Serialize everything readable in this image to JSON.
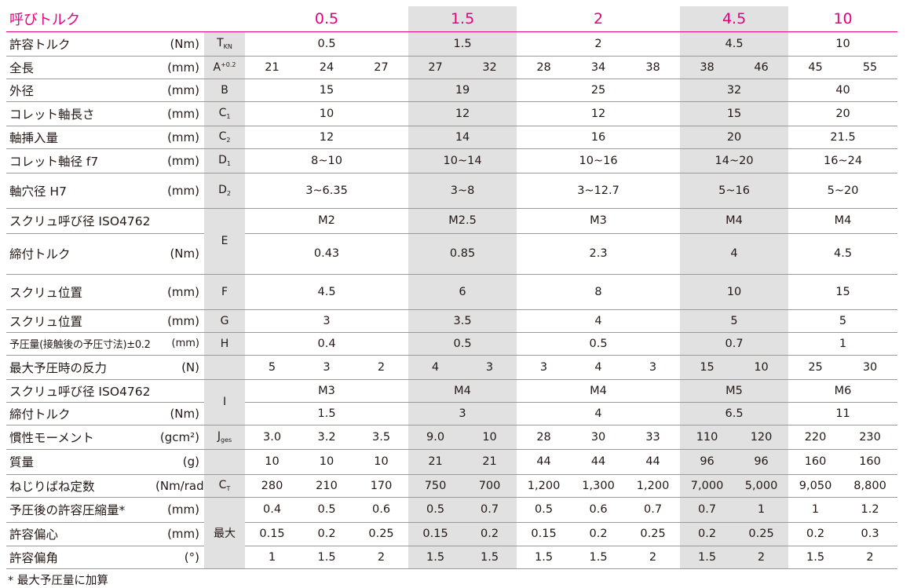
{
  "header": {
    "label": "呼びトルク",
    "sizes": [
      "0.5",
      "1.5",
      "2",
      "4.5",
      "10"
    ]
  },
  "rows": [
    {
      "label": "許容トルク",
      "unit": "(Nm)",
      "symbol": "T",
      "symbol_sub": "KN",
      "values": [
        "0.5",
        "1.5",
        "2",
        "4.5",
        "10"
      ]
    },
    {
      "label": "全長",
      "unit": "(mm)",
      "symbol": "A",
      "symbol_sup": "+0.2",
      "values": [
        "21",
        "24",
        "27",
        "27",
        "32",
        "28",
        "34",
        "38",
        "38",
        "46",
        "45",
        "55"
      ]
    },
    {
      "label": "外径",
      "unit": "(mm)",
      "symbol": "B",
      "values": [
        "15",
        "19",
        "25",
        "32",
        "40"
      ]
    },
    {
      "label": "コレット軸長さ",
      "unit": "(mm)",
      "symbol": "C",
      "symbol_sub": "1",
      "values": [
        "10",
        "12",
        "12",
        "15",
        "20"
      ]
    },
    {
      "label": "軸挿入量",
      "unit": "(mm)",
      "symbol": "C",
      "symbol_sub": "2",
      "values": [
        "12",
        "14",
        "16",
        "20",
        "21.5"
      ]
    },
    {
      "label": "コレット軸径 f7",
      "unit": "(mm)",
      "symbol": "D",
      "symbol_sub": "1",
      "values": [
        "8~10",
        "10~14",
        "10~16",
        "14~20",
        "16~24"
      ]
    },
    {
      "label": "軸穴径 H7",
      "unit": "(mm)",
      "symbol": "D",
      "symbol_sub": "2",
      "values": [
        "3~6.35",
        "3~8",
        "3~12.7",
        "5~16",
        "5~20"
      ]
    },
    {
      "label": "スクリュ呼び径 ISO4762",
      "unit": "",
      "symbol": "E",
      "values": [
        "M2",
        "M2.5",
        "M3",
        "M4",
        "M4"
      ]
    },
    {
      "label": "締付トルク",
      "unit": "(Nm)",
      "values": [
        "0.43",
        "0.85",
        "2.3",
        "4",
        "4.5"
      ]
    },
    {
      "label": "スクリュ位置",
      "unit": "(mm)",
      "symbol": "F",
      "values": [
        "4.5",
        "6",
        "8",
        "10",
        "15"
      ]
    },
    {
      "label": "スクリュ位置",
      "unit": "(mm)",
      "symbol": "G",
      "values": [
        "3",
        "3.5",
        "4",
        "5",
        "5"
      ]
    },
    {
      "label": "予圧量(接触後の予圧寸法)±0.2",
      "unit": "(mm)",
      "symbol": "H",
      "values": [
        "0.4",
        "0.5",
        "0.5",
        "0.7",
        "1"
      ]
    },
    {
      "label": "最大予圧時の反力",
      "unit": "(N)",
      "symbol": "",
      "values": [
        "5",
        "3",
        "2",
        "4",
        "3",
        "3",
        "4",
        "3",
        "15",
        "10",
        "25",
        "30"
      ]
    },
    {
      "label": "スクリュ呼び径 ISO4762",
      "unit": "",
      "symbol": "I",
      "values": [
        "M3",
        "M4",
        "M4",
        "M5",
        "M6"
      ]
    },
    {
      "label": "締付トルク",
      "unit": "(Nm)",
      "values": [
        "1.5",
        "3",
        "4",
        "6.5",
        "11"
      ]
    },
    {
      "label": "慣性モーメント",
      "unit": "(gcm²)",
      "symbol": "J",
      "symbol_sub": "ges",
      "values": [
        "3.0",
        "3.2",
        "3.5",
        "9.0",
        "10",
        "28",
        "30",
        "33",
        "110",
        "120",
        "220",
        "230"
      ]
    },
    {
      "label": "質量",
      "unit": "(g)",
      "symbol": "",
      "values": [
        "10",
        "10",
        "10",
        "21",
        "21",
        "44",
        "44",
        "44",
        "96",
        "96",
        "160",
        "160"
      ]
    },
    {
      "label": "ねじりばね定数",
      "unit": "(Nm/rad)",
      "symbol": "C",
      "symbol_sub": "T",
      "values": [
        "280",
        "210",
        "170",
        "750",
        "700",
        "1,200",
        "1,300",
        "1,200",
        "7,000",
        "5,000",
        "9,050",
        "8,800"
      ]
    },
    {
      "label": "予圧後の許容圧縮量*",
      "unit": "(mm)",
      "symbol": "最大",
      "values": [
        "0.4",
        "0.5",
        "0.6",
        "0.5",
        "0.7",
        "0.5",
        "0.6",
        "0.7",
        "0.7",
        "1",
        "1",
        "1.2"
      ]
    },
    {
      "label": "許容偏心",
      "unit": "(mm)",
      "values": [
        "0.15",
        "0.2",
        "0.25",
        "0.15",
        "0.2",
        "0.15",
        "0.2",
        "0.25",
        "0.2",
        "0.25",
        "0.2",
        "0.3"
      ]
    },
    {
      "label": "許容偏角",
      "unit": "(°)",
      "values": [
        "1",
        "1.5",
        "2",
        "1.5",
        "1.5",
        "1.5",
        "1.5",
        "2",
        "1.5",
        "2",
        "1.5",
        "2"
      ]
    }
  ],
  "footnote": "* 最大予圧量に加算",
  "colors": {
    "accent": "#e4007f",
    "shade": "#e1e1e1",
    "rule": "#9a9a9a"
  }
}
